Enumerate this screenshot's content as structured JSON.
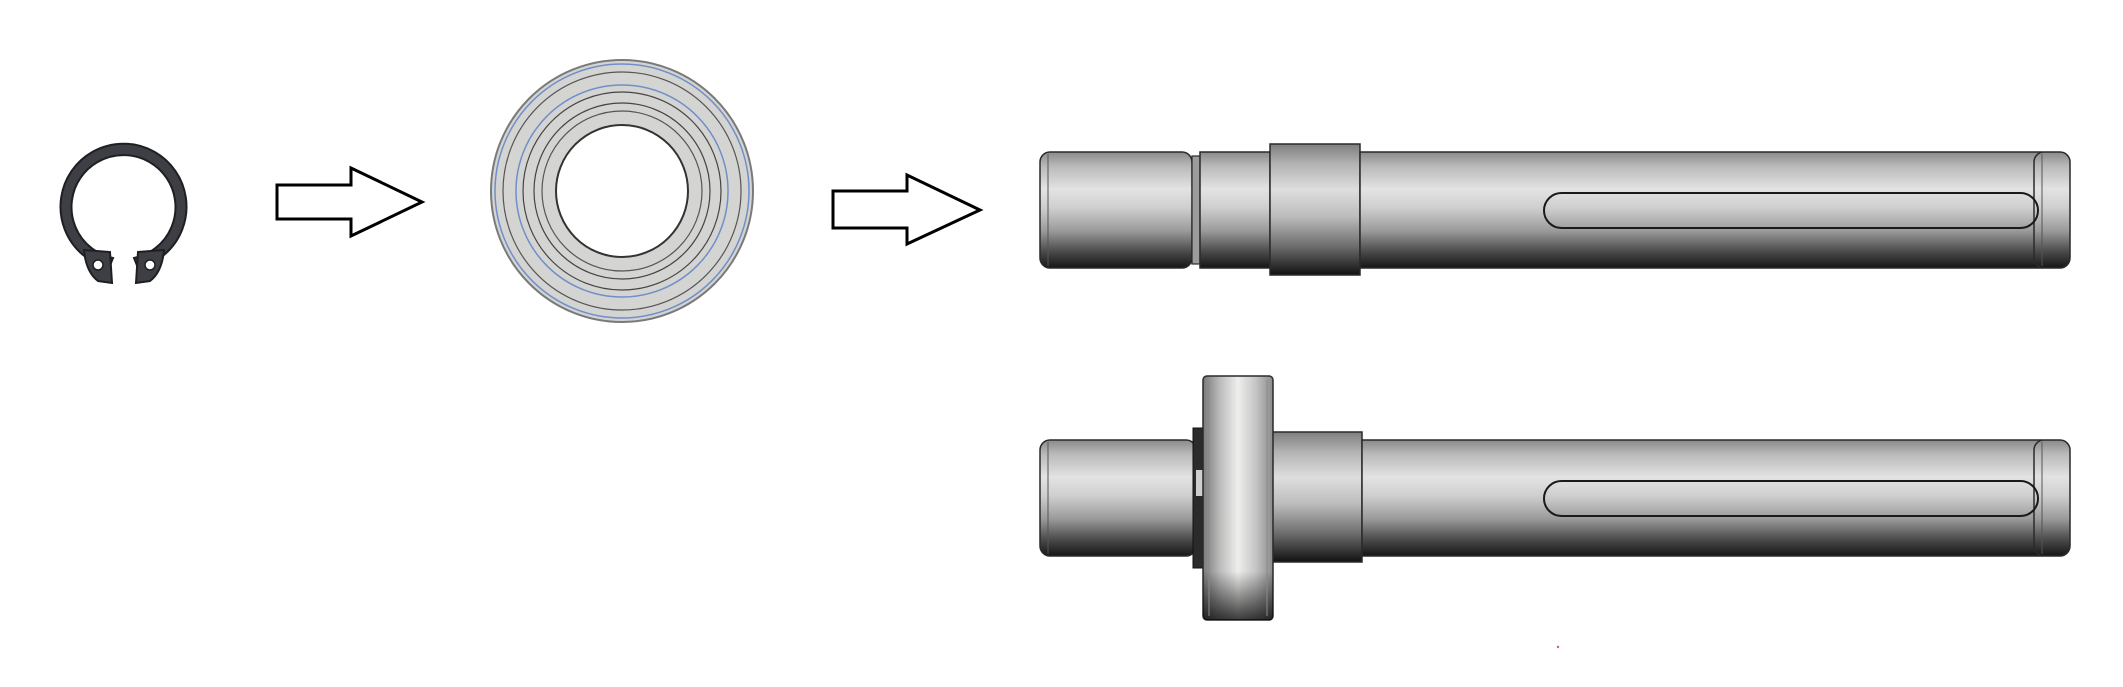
{
  "diagram": {
    "kind": "shaft-assembly-sequence",
    "background_color": "#ffffff",
    "steps": [
      {
        "part": "retaining-ring",
        "icon": "circlip-icon"
      },
      {
        "part": "ball-bearing",
        "icon": "bearing-icon"
      },
      {
        "part": "keyed-shaft",
        "icon": "shaft-icon"
      }
    ],
    "connectors": [
      {
        "icon": "right-arrow-icon",
        "from": "retaining-ring",
        "to": "ball-bearing"
      },
      {
        "icon": "right-arrow-icon",
        "from": "ball-bearing",
        "to": "keyed-shaft"
      }
    ],
    "result": {
      "part": "assembled-shaft",
      "icon": "shaft-with-bearing-icon"
    },
    "colors": {
      "circlip": "#3d3f45",
      "bearing_face": "#d4d4d2",
      "bearing_accent": "#6f8fc8",
      "shaft_highlight": "#e3e3e3",
      "shaft_shadow": "#151515",
      "outline": "#1a1a1a"
    }
  }
}
